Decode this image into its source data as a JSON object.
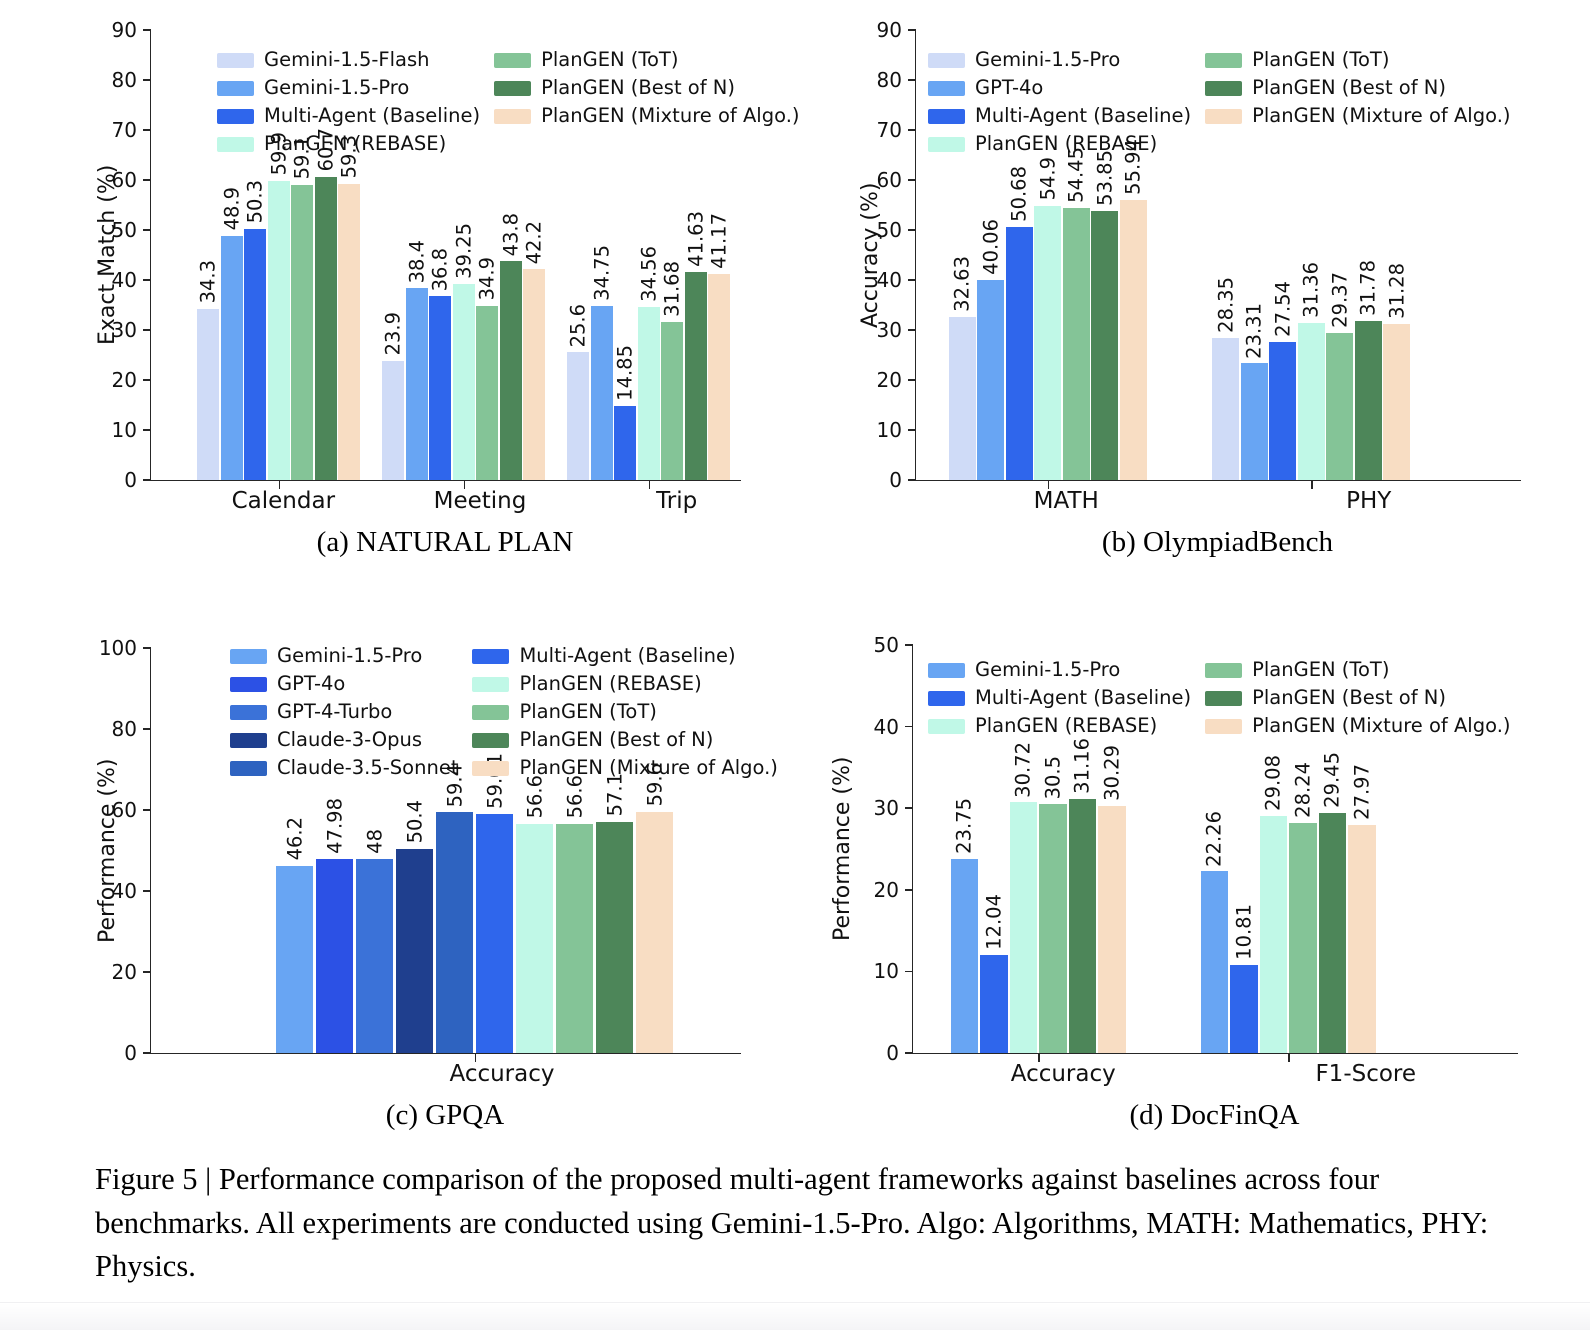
{
  "figure": {
    "caption": "Figure 5 | Performance comparison of the proposed multi-agent frameworks against baselines across four benchmarks. All experiments are conducted using Gemini-1.5-Pro. Algo: Algorithms, MATH: Mathematics, PHY: Physics."
  },
  "chart_data": [
    {
      "id": "natural-plan",
      "type": "bar",
      "title": "(a) NATURAL PLAN",
      "xlabel": "",
      "ylabel": "Exact Match (%)",
      "ylim": [
        0,
        90
      ],
      "ytick_step": 10,
      "grid": false,
      "legend_position": "upper left, two columns",
      "legend_split": 4,
      "categories": [
        "Calendar",
        "Meeting",
        "Trip"
      ],
      "series": [
        {
          "name": "Gemini-1.5-Flash",
          "color": "#cfdbf7",
          "values": [
            34.3,
            23.9,
            25.6
          ]
        },
        {
          "name": "Gemini-1.5-Pro",
          "color": "#68a5f3",
          "values": [
            48.9,
            38.4,
            34.75
          ]
        },
        {
          "name": "Multi-Agent (Baseline)",
          "color": "#2f66ec",
          "values": [
            50.3,
            36.8,
            14.85
          ]
        },
        {
          "name": "PlanGEN (REBASE)",
          "color": "#c0f8e7",
          "values": [
            59.9,
            39.25,
            34.56
          ]
        },
        {
          "name": "PlanGEN (ToT)",
          "color": "#84c497",
          "values": [
            59.1,
            34.9,
            31.68
          ]
        },
        {
          "name": "PlanGEN (Best of N)",
          "color": "#4d8659",
          "values": [
            60.7,
            43.8,
            41.63
          ]
        },
        {
          "name": "PlanGEN (Mixture of Algo.)",
          "color": "#f8ddc3",
          "values": [
            59.3,
            42.2,
            41.17
          ]
        }
      ]
    },
    {
      "id": "olympiadbench",
      "type": "bar",
      "title": "(b) OlympiadBench",
      "xlabel": "",
      "ylabel": "Accuracy (%)",
      "ylim": [
        0,
        90
      ],
      "ytick_step": 10,
      "grid": false,
      "legend_position": "upper left, two columns",
      "legend_split": 4,
      "categories": [
        "MATH",
        "PHY"
      ],
      "series": [
        {
          "name": "Gemini-1.5-Pro",
          "color": "#cfdbf7",
          "values": [
            32.63,
            28.35
          ]
        },
        {
          "name": "GPT-4o",
          "color": "#68a5f3",
          "values": [
            40.06,
            23.31
          ]
        },
        {
          "name": "Multi-Agent (Baseline)",
          "color": "#2f66ec",
          "values": [
            50.68,
            27.54
          ]
        },
        {
          "name": "PlanGEN (REBASE)",
          "color": "#c0f8e7",
          "values": [
            54.9,
            31.36
          ]
        },
        {
          "name": "PlanGEN (ToT)",
          "color": "#84c497",
          "values": [
            54.45,
            29.37
          ]
        },
        {
          "name": "PlanGEN (Best of N)",
          "color": "#4d8659",
          "values": [
            53.85,
            31.78
          ]
        },
        {
          "name": "PlanGEN (Mixture of Algo.)",
          "color": "#f8ddc3",
          "values": [
            55.94,
            31.28
          ]
        }
      ]
    },
    {
      "id": "gpqa",
      "type": "bar",
      "title": "(c) GPQA",
      "xlabel": "",
      "ylabel": "Performance (%)",
      "ylim": [
        0,
        100
      ],
      "ytick_step": 20,
      "grid": false,
      "legend_position": "upper center, two columns",
      "legend_split": 5,
      "categories": [
        "Accuracy"
      ],
      "series": [
        {
          "name": "Gemini-1.5-Pro",
          "color": "#68a5f3",
          "values": [
            46.2
          ]
        },
        {
          "name": "GPT-4o",
          "color": "#2c51e5",
          "values": [
            47.98
          ]
        },
        {
          "name": "GPT-4-Turbo",
          "color": "#3b72d8",
          "values": [
            48
          ]
        },
        {
          "name": "Claude-3-Opus",
          "color": "#1f3f8e",
          "values": [
            50.4
          ]
        },
        {
          "name": "Claude-3.5-Sonnet",
          "color": "#2e63c0",
          "values": [
            59.4
          ]
        },
        {
          "name": "Multi-Agent (Baseline)",
          "color": "#2f66ec",
          "values": [
            59.01
          ]
        },
        {
          "name": "PlanGEN (REBASE)",
          "color": "#c0f8e7",
          "values": [
            56.6
          ]
        },
        {
          "name": "PlanGEN (ToT)",
          "color": "#84c497",
          "values": [
            56.6
          ]
        },
        {
          "name": "PlanGEN (Best of N)",
          "color": "#4d8659",
          "values": [
            57.1
          ]
        },
        {
          "name": "PlanGEN (Mixture of Algo.)",
          "color": "#f8ddc3",
          "values": [
            59.6
          ]
        }
      ]
    },
    {
      "id": "docfinqa",
      "type": "bar",
      "title": "(d) DocFinQA",
      "xlabel": "",
      "ylabel": "Performance (%)",
      "ylim": [
        0,
        50
      ],
      "ytick_step": 10,
      "grid": false,
      "legend_position": "upper center, two columns",
      "legend_split": 3,
      "categories": [
        "Accuracy",
        "F1-Score"
      ],
      "series": [
        {
          "name": "Gemini-1.5-Pro",
          "color": "#68a5f3",
          "values": [
            23.75,
            22.26
          ]
        },
        {
          "name": "Multi-Agent (Baseline)",
          "color": "#2f66ec",
          "values": [
            12.04,
            10.81
          ]
        },
        {
          "name": "PlanGEN (REBASE)",
          "color": "#c0f8e7",
          "values": [
            30.72,
            29.08
          ]
        },
        {
          "name": "PlanGEN (ToT)",
          "color": "#84c497",
          "values": [
            30.5,
            28.24
          ]
        },
        {
          "name": "PlanGEN (Best of N)",
          "color": "#4d8659",
          "values": [
            31.16,
            29.45
          ]
        },
        {
          "name": "PlanGEN (Mixture of Algo.)",
          "color": "#f8ddc3",
          "values": [
            30.29,
            27.97
          ]
        }
      ]
    }
  ]
}
